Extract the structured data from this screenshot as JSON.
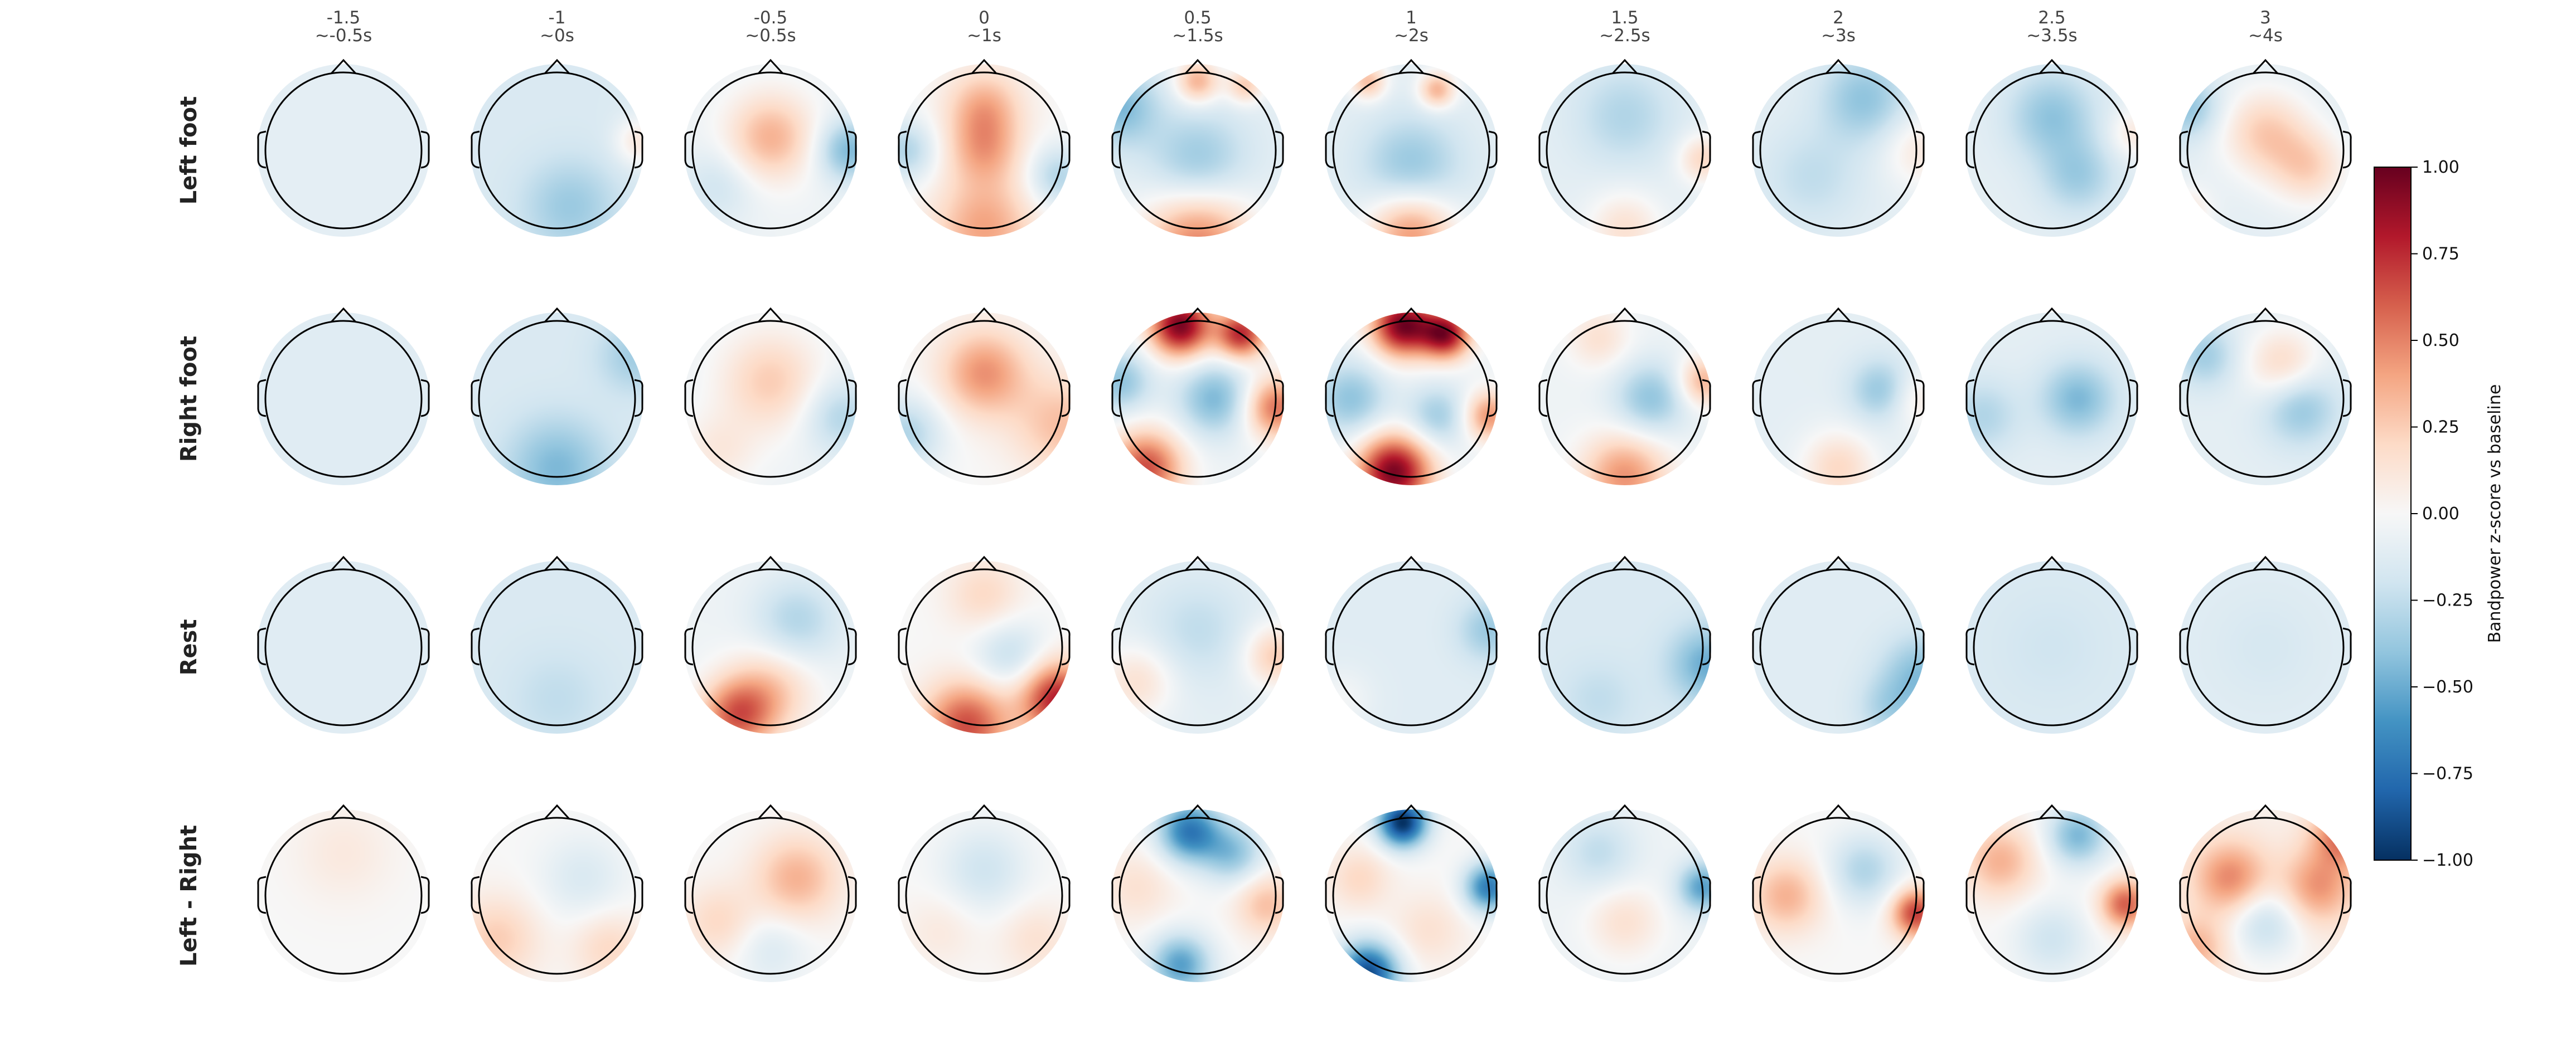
{
  "chart_data": {
    "type": "heatmap",
    "subtype": "topographic-scalp-map-grid",
    "columns": [
      {
        "label": "-1.5",
        "sublabel": "~-0.5s"
      },
      {
        "label": "-1",
        "sublabel": "~0s"
      },
      {
        "label": "-0.5",
        "sublabel": "~0.5s"
      },
      {
        "label": "0",
        "sublabel": "~1s"
      },
      {
        "label": "0.5",
        "sublabel": "~1.5s"
      },
      {
        "label": "1",
        "sublabel": "~2s"
      },
      {
        "label": "1.5",
        "sublabel": "~2.5s"
      },
      {
        "label": "2",
        "sublabel": "~3s"
      },
      {
        "label": "2.5",
        "sublabel": "~3.5s"
      },
      {
        "label": "3",
        "sublabel": "~4s"
      }
    ],
    "rows": [
      "Left foot",
      "Right foot",
      "Rest",
      "Left - Right"
    ],
    "colorbar": {
      "label": "Bandpower z-score vs baseline",
      "range": [
        -1.0,
        1.0
      ],
      "ticks": [
        "1.00",
        "0.75",
        "0.50",
        "0.25",
        "0.00",
        "−0.25",
        "−0.50",
        "−0.75",
        "−1.00"
      ],
      "colormap": "RdBu_r",
      "colors": [
        "#053061",
        "#2166ac",
        "#4393c3",
        "#92c5de",
        "#d1e5f0",
        "#f7f7f7",
        "#fddbc7",
        "#f4a582",
        "#d6604d",
        "#b2182b",
        "#67001f"
      ]
    },
    "maps": [
      [
        {
          "base": -0.1,
          "blobs": []
        },
        {
          "base": -0.15,
          "blobs": [
            {
              "u": 0.15,
              "v": 0.65,
              "s": 0.38,
              "a": -0.22
            },
            {
              "u": 0.95,
              "v": -0.1,
              "s": 0.2,
              "a": 0.25
            }
          ]
        },
        {
          "base": -0.05,
          "blobs": [
            {
              "u": 0.0,
              "v": -0.15,
              "s": 0.35,
              "a": 0.4
            },
            {
              "u": 0.9,
              "v": 0.0,
              "s": 0.25,
              "a": -0.4
            },
            {
              "u": -0.6,
              "v": 0.4,
              "s": 0.3,
              "a": -0.15
            }
          ]
        },
        {
          "base": 0.0,
          "blobs": [
            {
              "u": 0.0,
              "v": -0.5,
              "s": 0.3,
              "a": 0.35
            },
            {
              "u": 0.0,
              "v": 0.0,
              "s": 0.3,
              "a": 0.35
            },
            {
              "u": 0.0,
              "v": 0.9,
              "s": 0.4,
              "a": 0.4
            },
            {
              "u": -0.9,
              "v": 0.0,
              "s": 0.25,
              "a": -0.3
            },
            {
              "u": 0.85,
              "v": 0.3,
              "s": 0.25,
              "a": -0.3
            }
          ]
        },
        {
          "base": -0.1,
          "blobs": [
            {
              "u": 0.0,
              "v": 1.05,
              "s": 0.45,
              "a": 0.6
            },
            {
              "u": 0.0,
              "v": -0.8,
              "s": 0.18,
              "a": 0.45
            },
            {
              "u": 0.55,
              "v": -0.75,
              "s": 0.15,
              "a": 0.35
            },
            {
              "u": 0.0,
              "v": 0.15,
              "s": 0.4,
              "a": -0.3
            },
            {
              "u": -0.9,
              "v": -0.5,
              "s": 0.3,
              "a": -0.35
            }
          ]
        },
        {
          "base": -0.1,
          "blobs": [
            {
              "u": 0.0,
              "v": 0.95,
              "s": 0.35,
              "a": 0.55
            },
            {
              "u": -0.5,
              "v": -0.8,
              "s": 0.15,
              "a": 0.4
            },
            {
              "u": 0.3,
              "v": -0.7,
              "s": 0.15,
              "a": 0.45
            },
            {
              "u": 0.0,
              "v": 0.2,
              "s": 0.4,
              "a": -0.3
            }
          ]
        },
        {
          "base": -0.1,
          "blobs": [
            {
              "u": 0.0,
              "v": 0.9,
              "s": 0.3,
              "a": 0.25
            },
            {
              "u": 0.9,
              "v": 0.1,
              "s": 0.2,
              "a": 0.3
            },
            {
              "u": 0.0,
              "v": -0.4,
              "s": 0.4,
              "a": -0.2
            }
          ]
        },
        {
          "base": -0.1,
          "blobs": [
            {
              "u": 0.3,
              "v": -0.6,
              "s": 0.35,
              "a": -0.3
            },
            {
              "u": 0.95,
              "v": 0.0,
              "s": 0.3,
              "a": 0.2
            },
            {
              "u": -0.3,
              "v": 0.3,
              "s": 0.4,
              "a": -0.15
            }
          ]
        },
        {
          "base": -0.1,
          "blobs": [
            {
              "u": 0.0,
              "v": -0.4,
              "s": 0.35,
              "a": -0.3
            },
            {
              "u": 0.95,
              "v": -0.2,
              "s": 0.2,
              "a": 0.2
            },
            {
              "u": 0.3,
              "v": 0.3,
              "s": 0.3,
              "a": -0.25
            }
          ]
        },
        {
          "base": -0.1,
          "blobs": [
            {
              "u": 0.0,
              "v": -0.2,
              "s": 0.35,
              "a": 0.35
            },
            {
              "u": 0.5,
              "v": 0.2,
              "s": 0.3,
              "a": 0.3
            },
            {
              "u": -0.9,
              "v": -0.5,
              "s": 0.25,
              "a": -0.3
            },
            {
              "u": -0.9,
              "v": 0.7,
              "s": 0.2,
              "a": 0.2
            }
          ]
        }
      ],
      [
        {
          "base": -0.12,
          "blobs": []
        },
        {
          "base": -0.15,
          "blobs": [
            {
              "u": 0.0,
              "v": 0.8,
              "s": 0.4,
              "a": -0.3
            },
            {
              "u": 0.9,
              "v": -0.5,
              "s": 0.3,
              "a": -0.2
            }
          ]
        },
        {
          "base": -0.05,
          "blobs": [
            {
              "u": 0.0,
              "v": -0.2,
              "s": 0.4,
              "a": 0.3
            },
            {
              "u": -0.6,
              "v": 0.6,
              "s": 0.3,
              "a": 0.15
            },
            {
              "u": 0.8,
              "v": 0.2,
              "s": 0.3,
              "a": -0.25
            }
          ]
        },
        {
          "base": 0.0,
          "blobs": [
            {
              "u": 0.0,
              "v": -0.3,
              "s": 0.35,
              "a": 0.45
            },
            {
              "u": 0.9,
              "v": 0.3,
              "s": 0.4,
              "a": 0.3
            },
            {
              "u": -0.9,
              "v": 0.4,
              "s": 0.3,
              "a": -0.3
            }
          ]
        },
        {
          "base": -0.05,
          "blobs": [
            {
              "u": -0.2,
              "v": -0.85,
              "s": 0.25,
              "a": 1.0
            },
            {
              "u": 0.5,
              "v": -0.75,
              "s": 0.2,
              "a": 0.8
            },
            {
              "u": -0.6,
              "v": 0.8,
              "s": 0.3,
              "a": 0.7
            },
            {
              "u": 0.9,
              "v": 0.1,
              "s": 0.25,
              "a": 0.6
            },
            {
              "u": 0.2,
              "v": 0.0,
              "s": 0.3,
              "a": -0.4
            },
            {
              "u": -0.9,
              "v": -0.2,
              "s": 0.25,
              "a": -0.35
            }
          ]
        },
        {
          "base": -0.05,
          "blobs": [
            {
              "u": -0.1,
              "v": -0.85,
              "s": 0.25,
              "a": 1.0
            },
            {
              "u": 0.4,
              "v": -0.75,
              "s": 0.2,
              "a": 0.9
            },
            {
              "u": -0.2,
              "v": 0.85,
              "s": 0.3,
              "a": 1.0
            },
            {
              "u": 0.9,
              "v": 0.2,
              "s": 0.2,
              "a": 0.5
            },
            {
              "u": -0.7,
              "v": 0.0,
              "s": 0.3,
              "a": -0.35
            },
            {
              "u": 0.3,
              "v": 0.2,
              "s": 0.25,
              "a": -0.3
            }
          ]
        },
        {
          "base": -0.05,
          "blobs": [
            {
              "u": 0.0,
              "v": 0.9,
              "s": 0.35,
              "a": 0.5
            },
            {
              "u": 0.9,
              "v": -0.2,
              "s": 0.2,
              "a": 0.4
            },
            {
              "u": 0.3,
              "v": 0.0,
              "s": 0.3,
              "a": -0.35
            },
            {
              "u": -0.3,
              "v": -0.7,
              "s": 0.25,
              "a": 0.2
            }
          ]
        },
        {
          "base": -0.1,
          "blobs": [
            {
              "u": 0.0,
              "v": 0.8,
              "s": 0.3,
              "a": 0.3
            },
            {
              "u": 0.9,
              "v": 0.0,
              "s": 0.25,
              "a": 0.2
            },
            {
              "u": 0.5,
              "v": -0.1,
              "s": 0.25,
              "a": -0.3
            }
          ]
        },
        {
          "base": -0.1,
          "blobs": [
            {
              "u": 0.3,
              "v": 0.0,
              "s": 0.3,
              "a": -0.35
            },
            {
              "u": -0.8,
              "v": 0.2,
              "s": 0.3,
              "a": -0.2
            }
          ]
        },
        {
          "base": -0.1,
          "blobs": [
            {
              "u": 0.2,
              "v": -0.4,
              "s": 0.3,
              "a": 0.3
            },
            {
              "u": 0.4,
              "v": 0.1,
              "s": 0.3,
              "a": -0.3
            },
            {
              "u": -0.7,
              "v": -0.5,
              "s": 0.25,
              "a": -0.25
            }
          ]
        }
      ],
      [
        {
          "base": -0.12,
          "blobs": []
        },
        {
          "base": -0.15,
          "blobs": [
            {
              "u": 0.0,
              "v": 0.6,
              "s": 0.4,
              "a": -0.1
            }
          ]
        },
        {
          "base": -0.05,
          "blobs": [
            {
              "u": -0.4,
              "v": 0.8,
              "s": 0.3,
              "a": 0.6
            },
            {
              "u": 0.0,
              "v": 0.5,
              "s": 0.35,
              "a": 0.3
            },
            {
              "u": 0.3,
              "v": -0.3,
              "s": 0.35,
              "a": -0.25
            }
          ]
        },
        {
          "base": 0.0,
          "blobs": [
            {
              "u": -0.2,
              "v": 0.9,
              "s": 0.35,
              "a": 0.65
            },
            {
              "u": 0.85,
              "v": 0.6,
              "s": 0.3,
              "a": 0.8
            },
            {
              "u": 0.0,
              "v": -0.6,
              "s": 0.3,
              "a": 0.2
            },
            {
              "u": 0.3,
              "v": 0.1,
              "s": 0.3,
              "a": -0.25
            }
          ]
        },
        {
          "base": -0.1,
          "blobs": [
            {
              "u": 0.9,
              "v": 0.1,
              "s": 0.25,
              "a": 0.35
            },
            {
              "u": -0.7,
              "v": 0.4,
              "s": 0.3,
              "a": 0.25
            },
            {
              "u": 0.0,
              "v": -0.2,
              "s": 0.4,
              "a": -0.15
            }
          ]
        },
        {
          "base": -0.12,
          "blobs": [
            {
              "u": 0.9,
              "v": -0.2,
              "s": 0.25,
              "a": -0.25
            },
            {
              "u": -0.8,
              "v": 0.6,
              "s": 0.25,
              "a": 0.1
            }
          ]
        },
        {
          "base": -0.15,
          "blobs": [
            {
              "u": 0.95,
              "v": 0.2,
              "s": 0.3,
              "a": -0.35
            },
            {
              "u": -0.3,
              "v": 0.6,
              "s": 0.3,
              "a": -0.1
            }
          ]
        },
        {
          "base": -0.12,
          "blobs": [
            {
              "u": 0.95,
              "v": 0.3,
              "s": 0.3,
              "a": -0.3
            },
            {
              "u": 0.6,
              "v": 0.7,
              "s": 0.25,
              "a": -0.2
            }
          ]
        },
        {
          "base": -0.15,
          "blobs": [
            {
              "u": 0.0,
              "v": 0.0,
              "s": 0.4,
              "a": -0.05
            }
          ]
        },
        {
          "base": -0.12,
          "blobs": [
            {
              "u": 0.0,
              "v": 0.0,
              "s": 0.4,
              "a": -0.05
            }
          ]
        }
      ],
      [
        {
          "base": 0.0,
          "blobs": [
            {
              "u": 0.0,
              "v": -0.5,
              "s": 0.4,
              "a": 0.1
            }
          ]
        },
        {
          "base": 0.0,
          "blobs": [
            {
              "u": -0.7,
              "v": 0.5,
              "s": 0.35,
              "a": 0.25
            },
            {
              "u": 0.3,
              "v": -0.2,
              "s": 0.35,
              "a": -0.15
            },
            {
              "u": 0.6,
              "v": 0.6,
              "s": 0.3,
              "a": 0.2
            }
          ]
        },
        {
          "base": 0.0,
          "blobs": [
            {
              "u": 0.3,
              "v": -0.2,
              "s": 0.35,
              "a": 0.35
            },
            {
              "u": -0.6,
              "v": 0.3,
              "s": 0.3,
              "a": 0.2
            },
            {
              "u": 0.0,
              "v": 0.6,
              "s": 0.3,
              "a": -0.15
            }
          ]
        },
        {
          "base": 0.0,
          "blobs": [
            {
              "u": 0.0,
              "v": -0.3,
              "s": 0.35,
              "a": -0.2
            },
            {
              "u": 0.6,
              "v": 0.5,
              "s": 0.3,
              "a": 0.15
            },
            {
              "u": -0.5,
              "v": 0.4,
              "s": 0.3,
              "a": 0.1
            }
          ]
        },
        {
          "base": 0.0,
          "blobs": [
            {
              "u": -0.1,
              "v": -0.75,
              "s": 0.25,
              "a": -0.7
            },
            {
              "u": 0.4,
              "v": -0.5,
              "s": 0.25,
              "a": -0.4
            },
            {
              "u": -0.2,
              "v": 0.8,
              "s": 0.25,
              "a": -0.55
            },
            {
              "u": 0.8,
              "v": 0.1,
              "s": 0.25,
              "a": 0.3
            },
            {
              "u": -0.7,
              "v": -0.1,
              "s": 0.3,
              "a": 0.15
            }
          ]
        },
        {
          "base": 0.0,
          "blobs": [
            {
              "u": -0.1,
              "v": -0.85,
              "s": 0.2,
              "a": -1.0
            },
            {
              "u": 0.9,
              "v": -0.1,
              "s": 0.2,
              "a": -0.7
            },
            {
              "u": -0.5,
              "v": 0.9,
              "s": 0.25,
              "a": -0.9
            },
            {
              "u": 0.2,
              "v": 0.4,
              "s": 0.3,
              "a": 0.15
            },
            {
              "u": -0.6,
              "v": -0.2,
              "s": 0.25,
              "a": 0.2
            }
          ]
        },
        {
          "base": -0.05,
          "blobs": [
            {
              "u": 0.9,
              "v": -0.1,
              "s": 0.2,
              "a": -0.5
            },
            {
              "u": 0.0,
              "v": 0.3,
              "s": 0.3,
              "a": 0.2
            },
            {
              "u": -0.3,
              "v": -0.5,
              "s": 0.3,
              "a": -0.2
            }
          ]
        },
        {
          "base": 0.0,
          "blobs": [
            {
              "u": 0.9,
              "v": 0.2,
              "s": 0.2,
              "a": 0.7
            },
            {
              "u": -0.6,
              "v": 0.0,
              "s": 0.3,
              "a": 0.35
            },
            {
              "u": 0.3,
              "v": -0.3,
              "s": 0.3,
              "a": -0.3
            }
          ]
        },
        {
          "base": 0.0,
          "blobs": [
            {
              "u": 0.85,
              "v": 0.1,
              "s": 0.2,
              "a": 0.6
            },
            {
              "u": -0.6,
              "v": -0.4,
              "s": 0.3,
              "a": 0.35
            },
            {
              "u": 0.3,
              "v": -0.7,
              "s": 0.25,
              "a": -0.45
            },
            {
              "u": 0.0,
              "v": 0.5,
              "s": 0.3,
              "a": -0.2
            }
          ]
        },
        {
          "base": 0.05,
          "blobs": [
            {
              "u": -0.4,
              "v": -0.2,
              "s": 0.3,
              "a": 0.45
            },
            {
              "u": 0.6,
              "v": -0.1,
              "s": 0.3,
              "a": 0.4
            },
            {
              "u": 0.9,
              "v": -0.7,
              "s": 0.25,
              "a": 0.5
            },
            {
              "u": 0.0,
              "v": 0.3,
              "s": 0.3,
              "a": -0.3
            },
            {
              "u": -0.8,
              "v": 0.6,
              "s": 0.25,
              "a": 0.3
            }
          ]
        }
      ]
    ]
  }
}
